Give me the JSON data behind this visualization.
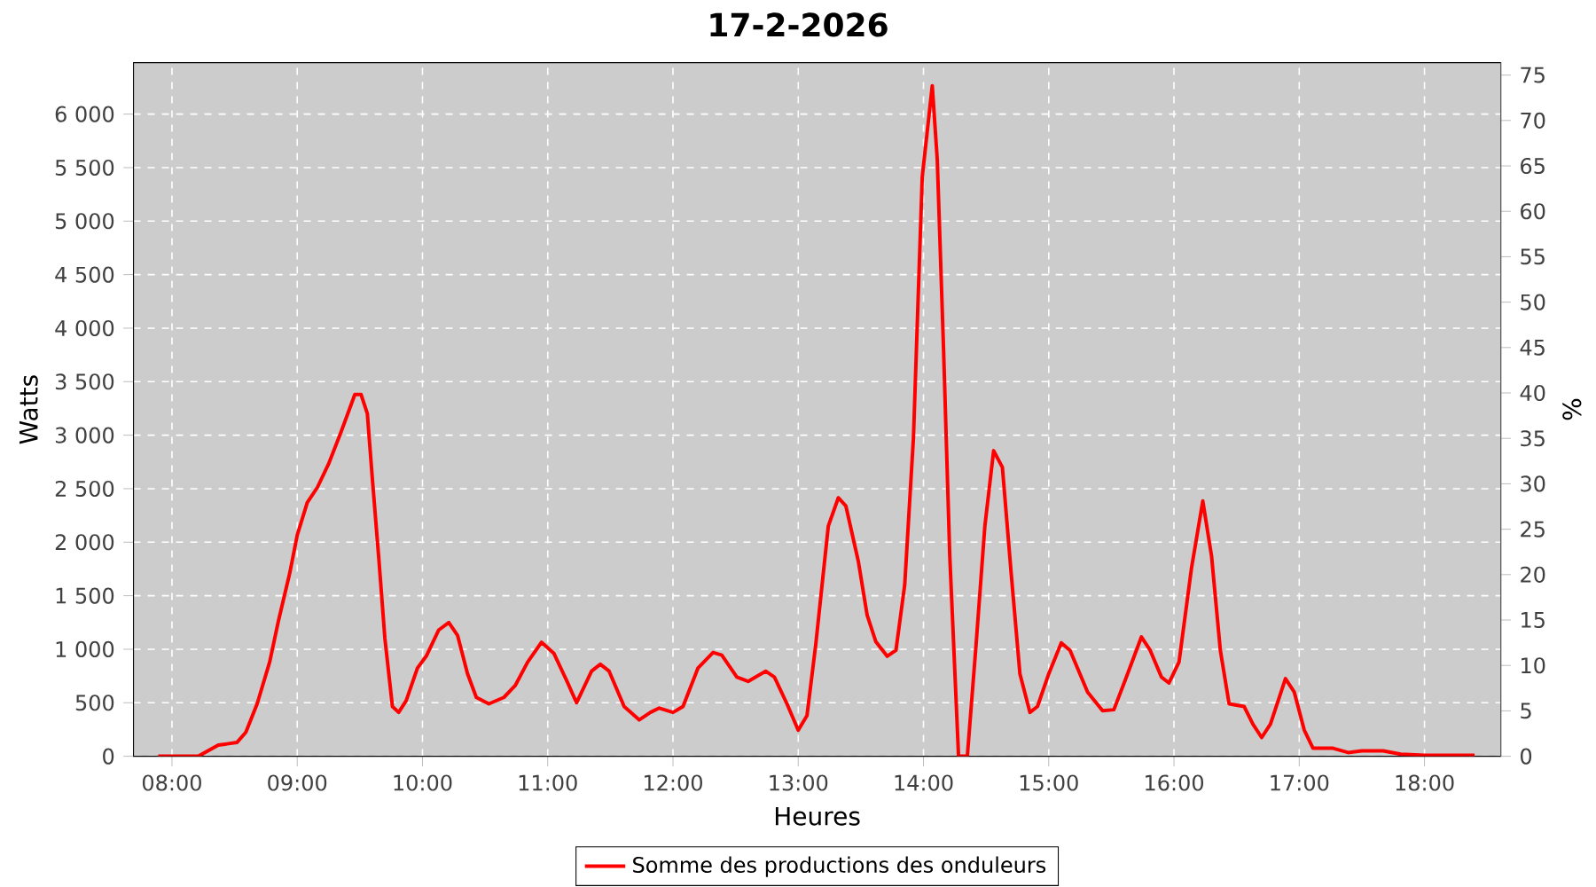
{
  "chart_data": {
    "type": "line",
    "title": "17-2-2026",
    "xlabel": "Heures",
    "ylabel": "Watts",
    "y2label": "%",
    "xlim": [
      7.693,
      18.609
    ],
    "xticks": [
      {
        "value": 8,
        "label": "08:00"
      },
      {
        "value": 9,
        "label": "09:00"
      },
      {
        "value": 10,
        "label": "10:00"
      },
      {
        "value": 11,
        "label": "11:00"
      },
      {
        "value": 12,
        "label": "12:00"
      },
      {
        "value": 13,
        "label": "13:00"
      },
      {
        "value": 14,
        "label": "14:00"
      },
      {
        "value": 15,
        "label": "15:00"
      },
      {
        "value": 16,
        "label": "16:00"
      },
      {
        "value": 17,
        "label": "17:00"
      },
      {
        "value": 18,
        "label": "18:00"
      }
    ],
    "ylim": [
      0,
      6481
    ],
    "yticks": [
      0,
      500,
      {
        "value": 1000,
        "label": "1 000"
      },
      {
        "value": 1500,
        "label": "1 500"
      },
      {
        "value": 2000,
        "label": "2 000"
      },
      {
        "value": 2500,
        "label": "2 500"
      },
      {
        "value": 3000,
        "label": "3 000"
      },
      {
        "value": 3500,
        "label": "3 500"
      },
      {
        "value": 4000,
        "label": "4 000"
      },
      {
        "value": 4500,
        "label": "4 500"
      },
      {
        "value": 5000,
        "label": "5 000"
      },
      {
        "value": 5500,
        "label": "5 500"
      },
      {
        "value": 6000,
        "label": "6 000"
      }
    ],
    "y2lim": [
      0,
      76.37
    ],
    "y2ticks": [
      0,
      5,
      10,
      15,
      20,
      25,
      30,
      35,
      40,
      45,
      50,
      55,
      60,
      65,
      70,
      75
    ],
    "grid": true,
    "legend": "bottom",
    "marker": "none",
    "line_style": "solid",
    "series": [
      {
        "name": "Somme des productions des onduleurs",
        "color": "#ff0000",
        "x": [
          7.89,
          8.21,
          8.37,
          8.44,
          8.52,
          8.59,
          8.68,
          8.78,
          8.85,
          8.94,
          9.0,
          9.08,
          9.16,
          9.25,
          9.35,
          9.46,
          9.51,
          9.56,
          9.6,
          9.65,
          9.7,
          9.76,
          9.81,
          9.87,
          9.96,
          10.03,
          10.13,
          10.21,
          10.28,
          10.36,
          10.43,
          10.53,
          10.65,
          10.74,
          10.84,
          10.95,
          11.05,
          11.15,
          11.23,
          11.35,
          11.42,
          11.49,
          11.61,
          11.73,
          11.82,
          11.89,
          12.0,
          12.08,
          12.2,
          12.32,
          12.39,
          12.51,
          12.6,
          12.74,
          12.81,
          12.91,
          13.0,
          13.07,
          13.14,
          13.24,
          13.32,
          13.38,
          13.48,
          13.55,
          13.62,
          13.71,
          13.78,
          13.85,
          13.92,
          13.99,
          14.07,
          14.11,
          14.16,
          14.21,
          14.28,
          14.35,
          14.42,
          14.49,
          14.56,
          14.63,
          14.7,
          14.77,
          14.85,
          14.91,
          15.0,
          15.1,
          15.17,
          15.31,
          15.43,
          15.52,
          15.62,
          15.74,
          15.81,
          15.9,
          15.96,
          16.04,
          16.14,
          16.23,
          16.3,
          16.37,
          16.44,
          16.56,
          16.63,
          16.7,
          16.77,
          16.89,
          16.96,
          17.04,
          17.11,
          17.27,
          17.39,
          17.5,
          17.67,
          17.81,
          18.0,
          18.4
        ],
        "values": [
          0,
          0,
          105,
          116,
          130,
          225,
          490,
          880,
          1265,
          1710,
          2065,
          2370,
          2510,
          2730,
          3030,
          3380,
          3380,
          3200,
          2590,
          1870,
          1100,
          465,
          410,
          520,
          825,
          935,
          1180,
          1250,
          1130,
          770,
          550,
          490,
          550,
          660,
          880,
          1065,
          960,
          710,
          500,
          795,
          860,
          795,
          465,
          340,
          410,
          450,
          410,
          465,
          825,
          970,
          945,
          740,
          700,
          795,
          740,
          490,
          243,
          380,
          1045,
          2150,
          2415,
          2340,
          1820,
          1320,
          1070,
          935,
          990,
          1600,
          2980,
          5410,
          6265,
          5575,
          3810,
          1870,
          0,
          0,
          1045,
          2150,
          2855,
          2700,
          1710,
          770,
          410,
          465,
          770,
          1060,
          990,
          600,
          425,
          435,
          740,
          1115,
          990,
          740,
          685,
          880,
          1760,
          2385,
          1870,
          990,
          490,
          465,
          300,
          175,
          300,
          725,
          600,
          245,
          75,
          75,
          35,
          50,
          50,
          20,
          10,
          10
        ]
      }
    ]
  }
}
